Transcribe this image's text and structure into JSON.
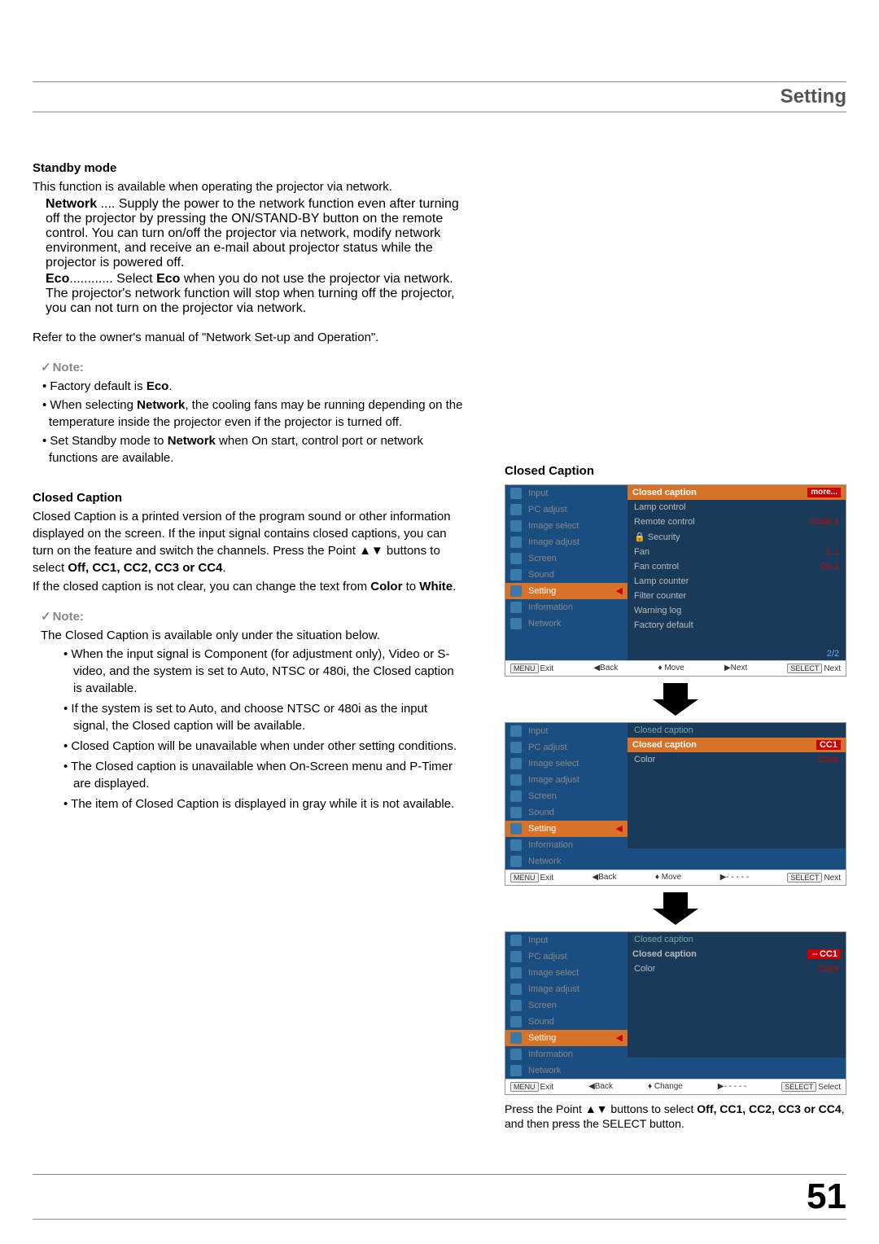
{
  "header": {
    "title": "Setting"
  },
  "standby": {
    "heading": "Standby mode",
    "intro": "This function is available when operating the projector via network.",
    "network_term": "Network",
    "network_dots": " .... ",
    "network_desc": "Supply the power to the network function even after turning off the projector by pressing the ON/STAND-BY button on the remote control. You can turn on/off the projector via network, modify network environment, and receive an e-mail about projector status while the projector is powered off.",
    "eco_term": "Eco",
    "eco_dots": "............ ",
    "eco_desc_1": "Select ",
    "eco_desc_bold": "Eco",
    "eco_desc_2": " when you do not use the projector via network. The projector's network function will stop when turning off the projector, you can not turn on the projector via network.",
    "refer": "Refer to the owner's manual of \"Network Set-up and Operation\"."
  },
  "note1": {
    "title": "Note:",
    "b1_pre": "Factory default is ",
    "b1_bold": "Eco",
    "b1_post": ".",
    "b2_pre": "When selecting ",
    "b2_bold": "Network",
    "b2_post": ", the cooling fans may be running depending on the temperature inside the projector even if  the projector is turned off.",
    "b3_pre": "Set Standby mode to ",
    "b3_bold": "Network",
    "b3_post": " when On start, control port or network functions are available."
  },
  "cc": {
    "heading": "Closed Caption",
    "p1": "Closed Caption is a printed version of the program sound or other information displayed on the screen. If the input signal contains closed captions, you can turn on the feature and switch the channels. Press the Point ▲▼ buttons to select ",
    "p1_bold": "Off, CC1, CC2, CC3 or CC4",
    "p1_post": ".",
    "p2_pre": "If the closed caption is not clear, you can change the text from ",
    "p2_b1": "Color",
    "p2_mid": " to ",
    "p2_b2": "White",
    "p2_post": "."
  },
  "note2": {
    "title": "Note:",
    "intro": "The Closed Caption is available only under the situation below.",
    "b1": "When the input signal is Component (for adjustment only),  Video or  S-video, and the system is set to Auto, NTSC or 480i, the Closed caption is available.",
    "b2": "If  the system is set to Auto, and choose NTSC or 480i as the input signal, the Closed caption will be available.",
    "b3": "Closed Caption will be unavailable when under other setting conditions.",
    "b4": "The Closed caption is unavailable when On-Screen menu and P-Timer are displayed.",
    "b5": "The item of Closed Caption is displayed in gray while it is not available."
  },
  "right_heading": "Closed Caption",
  "menu_items": [
    "Input",
    "PC adjust",
    "Image select",
    "Image adjust",
    "Screen",
    "Sound",
    "Setting",
    "Information",
    "Network"
  ],
  "menu1_right": {
    "hdr": "Closed caption",
    "more": "more...",
    "rows": [
      {
        "l": "Lamp control",
        "v": ""
      },
      {
        "l": "Remote control",
        "v": "Code 1"
      },
      {
        "l": "Security",
        "v": "",
        "lock": true
      },
      {
        "l": "Fan",
        "v": "L 1"
      },
      {
        "l": "Fan control",
        "v": "On 1"
      },
      {
        "l": "Lamp counter",
        "v": ""
      },
      {
        "l": "Filter counter",
        "v": ""
      },
      {
        "l": "Warning log",
        "v": ""
      },
      {
        "l": "Factory default",
        "v": ""
      }
    ],
    "page": "2/2"
  },
  "menu2_right": {
    "sub": "Closed caption",
    "hdr": "Closed caption",
    "val": "CC1",
    "row2_l": "Color",
    "row2_v": "Color"
  },
  "menu3_right": {
    "sub": "Closed caption",
    "hdr": "Closed caption",
    "val": "CC1",
    "row2_l": "Color",
    "row2_v": "Color"
  },
  "footer": {
    "exit": "Exit",
    "back": "Back",
    "move": "Move",
    "next": "Next",
    "change": "Change",
    "dash": "- - - - -",
    "select": "Select",
    "menu_key": "MENU",
    "select_key": "SELECT"
  },
  "caption_text": {
    "pre": "Press the Point ▲▼ buttons to select ",
    "bold": "Off, CC1, CC2, CC3 or CC4",
    "post": ", and then press the SELECT button."
  },
  "page_number": "51",
  "colors": {
    "accent": "#d87228",
    "menu_bg": "#1a4d80",
    "red": "#c00"
  }
}
